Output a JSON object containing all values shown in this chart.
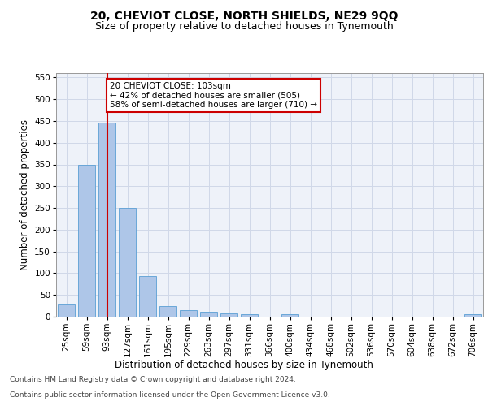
{
  "title": "20, CHEVIOT CLOSE, NORTH SHIELDS, NE29 9QQ",
  "subtitle": "Size of property relative to detached houses in Tynemouth",
  "xlabel": "Distribution of detached houses by size in Tynemouth",
  "ylabel": "Number of detached properties",
  "bar_labels": [
    "25sqm",
    "59sqm",
    "93sqm",
    "127sqm",
    "161sqm",
    "195sqm",
    "229sqm",
    "263sqm",
    "297sqm",
    "331sqm",
    "366sqm",
    "400sqm",
    "434sqm",
    "468sqm",
    "502sqm",
    "536sqm",
    "570sqm",
    "604sqm",
    "638sqm",
    "672sqm",
    "706sqm"
  ],
  "bar_values": [
    28,
    350,
    447,
    250,
    93,
    25,
    15,
    12,
    7,
    6,
    0,
    6,
    0,
    0,
    0,
    0,
    0,
    0,
    0,
    0,
    6
  ],
  "bar_color": "#aec6e8",
  "bar_edge_color": "#5a9fd4",
  "grid_color": "#d0d8e8",
  "bg_color": "#eef2f9",
  "vline_x_index": 2,
  "vline_color": "#cc0000",
  "annotation_text": "20 CHEVIOT CLOSE: 103sqm\n← 42% of detached houses are smaller (505)\n58% of semi-detached houses are larger (710) →",
  "annotation_box_color": "#ffffff",
  "annotation_box_edge": "#cc0000",
  "footer_line1": "Contains HM Land Registry data © Crown copyright and database right 2024.",
  "footer_line2": "Contains public sector information licensed under the Open Government Licence v3.0.",
  "ylim": [
    0,
    560
  ],
  "yticks": [
    0,
    50,
    100,
    150,
    200,
    250,
    300,
    350,
    400,
    450,
    500,
    550
  ],
  "title_fontsize": 10,
  "subtitle_fontsize": 9,
  "xlabel_fontsize": 8.5,
  "ylabel_fontsize": 8.5,
  "tick_fontsize": 7.5,
  "footer_fontsize": 6.5
}
